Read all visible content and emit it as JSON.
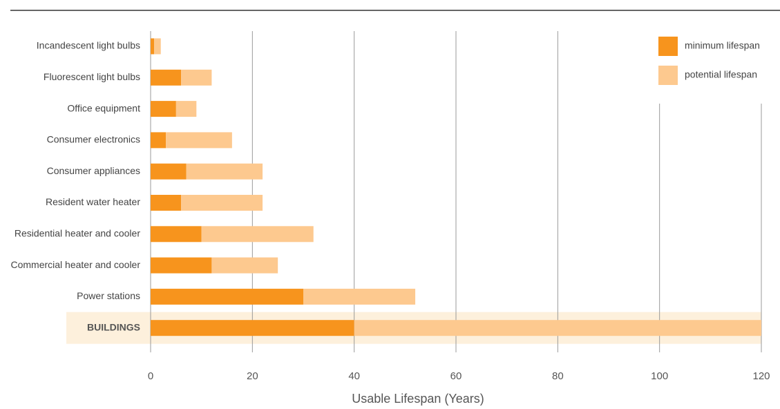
{
  "chart_data": {
    "type": "stacked-bar-horizontal",
    "categories": [
      "Incandescent light bulbs",
      "Fluorescent light bulbs",
      "Office equipment",
      "Consumer electronics",
      "Consumer appliances",
      "Resident water heater",
      "Residential heater and cooler",
      "Commercial heater and cooler",
      "Power stations",
      "BUILDINGS"
    ],
    "series": [
      {
        "name": "minimum lifespan",
        "color": "#f7941d",
        "values": [
          0.7,
          6,
          5,
          3,
          7,
          6,
          10,
          12,
          30,
          40
        ]
      },
      {
        "name": "potential lifespan",
        "color": "#fdc98f",
        "values": [
          1.3,
          6,
          4,
          13,
          15,
          16,
          22,
          13,
          22,
          80
        ]
      }
    ],
    "xlabel": "Usable Lifespan (Years)",
    "xlim": [
      0,
      120
    ],
    "xticks": [
      0,
      20,
      40,
      60,
      80,
      100,
      120
    ],
    "grid": true,
    "legend": "top-right"
  }
}
